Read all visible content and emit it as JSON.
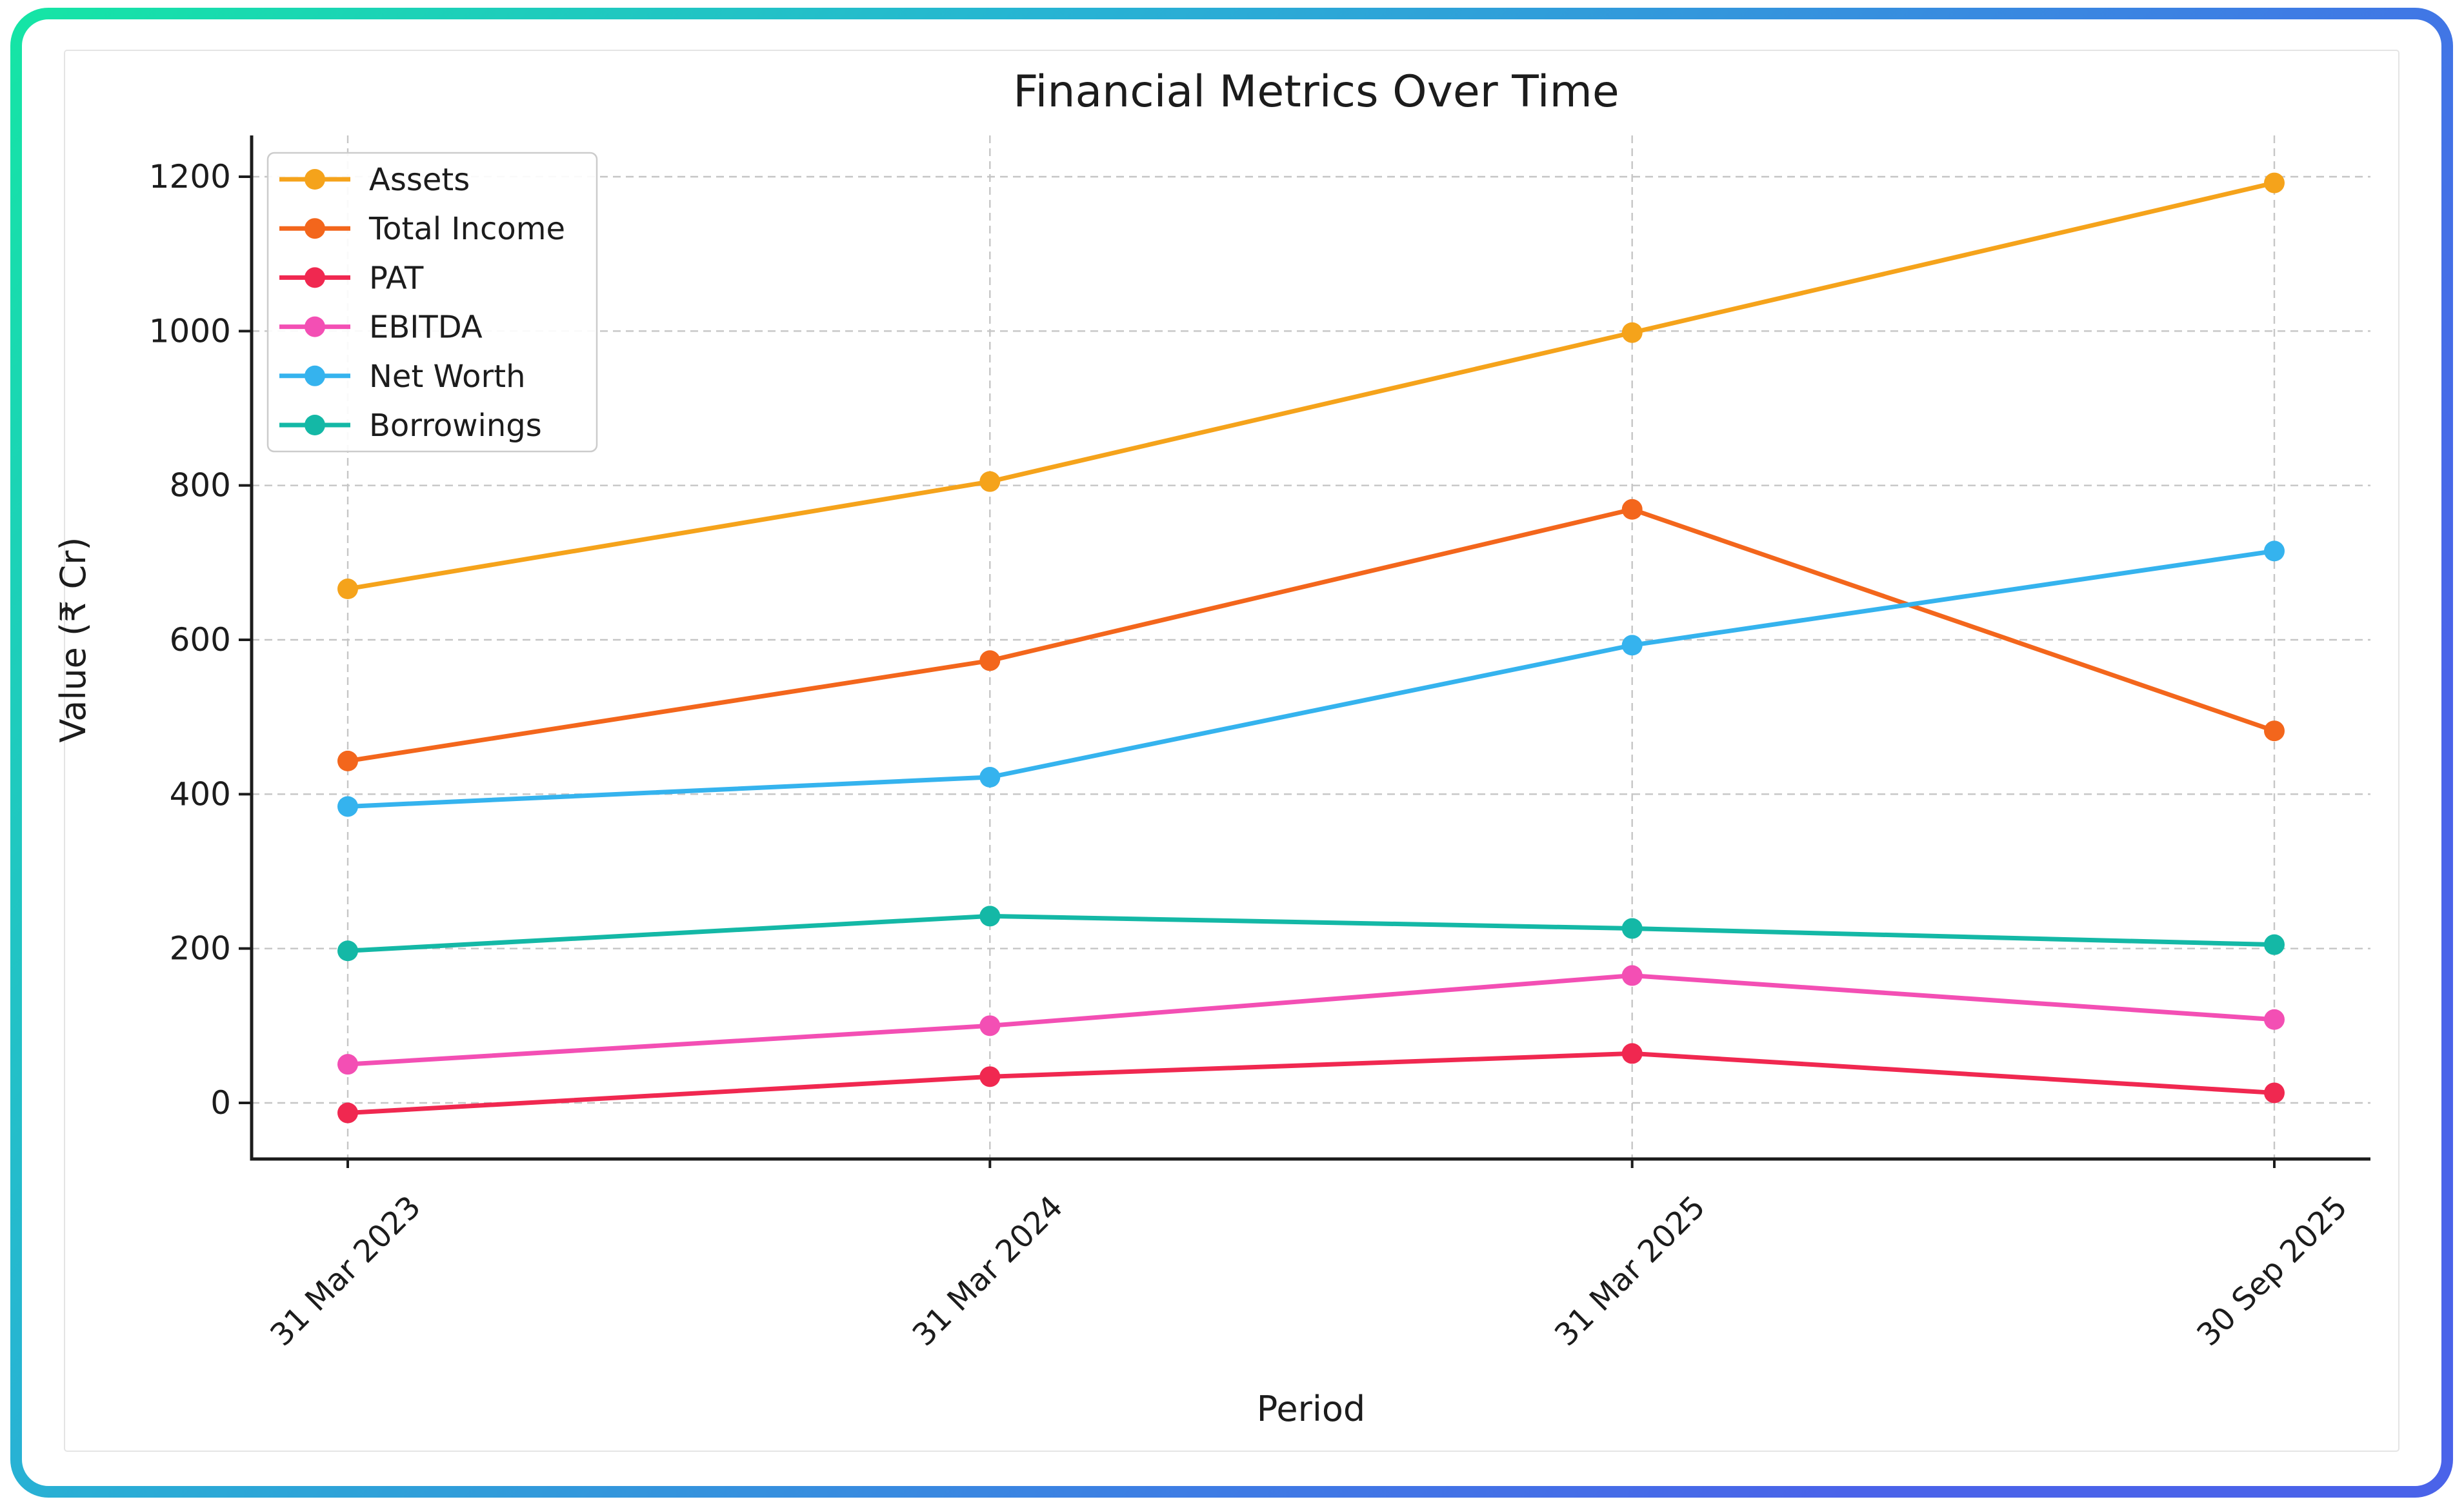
{
  "frame": {
    "border_gradient": [
      "#15E5A5",
      "#27B4D3",
      "#3E7CE4",
      "#4A63E9"
    ],
    "card_border_color": "#e4e4e4",
    "background": "#ffffff"
  },
  "chart_data": {
    "type": "line",
    "title": "Financial Metrics Over Time",
    "xlabel": "Period",
    "ylabel": "Value (₹ Cr)",
    "categories": [
      "31 Mar 2023",
      "31 Mar 2024",
      "31 Mar 2025",
      "30 Sep 2025"
    ],
    "series": [
      {
        "name": "Assets",
        "color": "#F5A31B",
        "values": [
          666,
          805,
          998,
          1192
        ]
      },
      {
        "name": "Total Income",
        "color": "#F3661C",
        "values": [
          443,
          573,
          769,
          482
        ]
      },
      {
        "name": "PAT",
        "color": "#F02850",
        "values": [
          -13,
          34,
          64,
          13
        ]
      },
      {
        "name": "EBITDA",
        "color": "#F34FB4",
        "values": [
          50,
          100,
          165,
          108
        ]
      },
      {
        "name": "Net Worth",
        "color": "#35B3EE",
        "values": [
          384,
          422,
          593,
          715
        ]
      },
      {
        "name": "Borrowings",
        "color": "#14B8A6",
        "values": [
          197,
          242,
          226,
          205
        ]
      }
    ],
    "yticks": [
      0,
      200,
      400,
      600,
      800,
      1000,
      1200
    ],
    "ylim": [
      -73,
      1253
    ],
    "grid": true,
    "grid_style": "dashed",
    "legend_position": "upper left",
    "legend_labels": [
      "Assets",
      "Total Income",
      "PAT",
      "EBITDA",
      "Net Worth",
      "Borrowings"
    ]
  }
}
